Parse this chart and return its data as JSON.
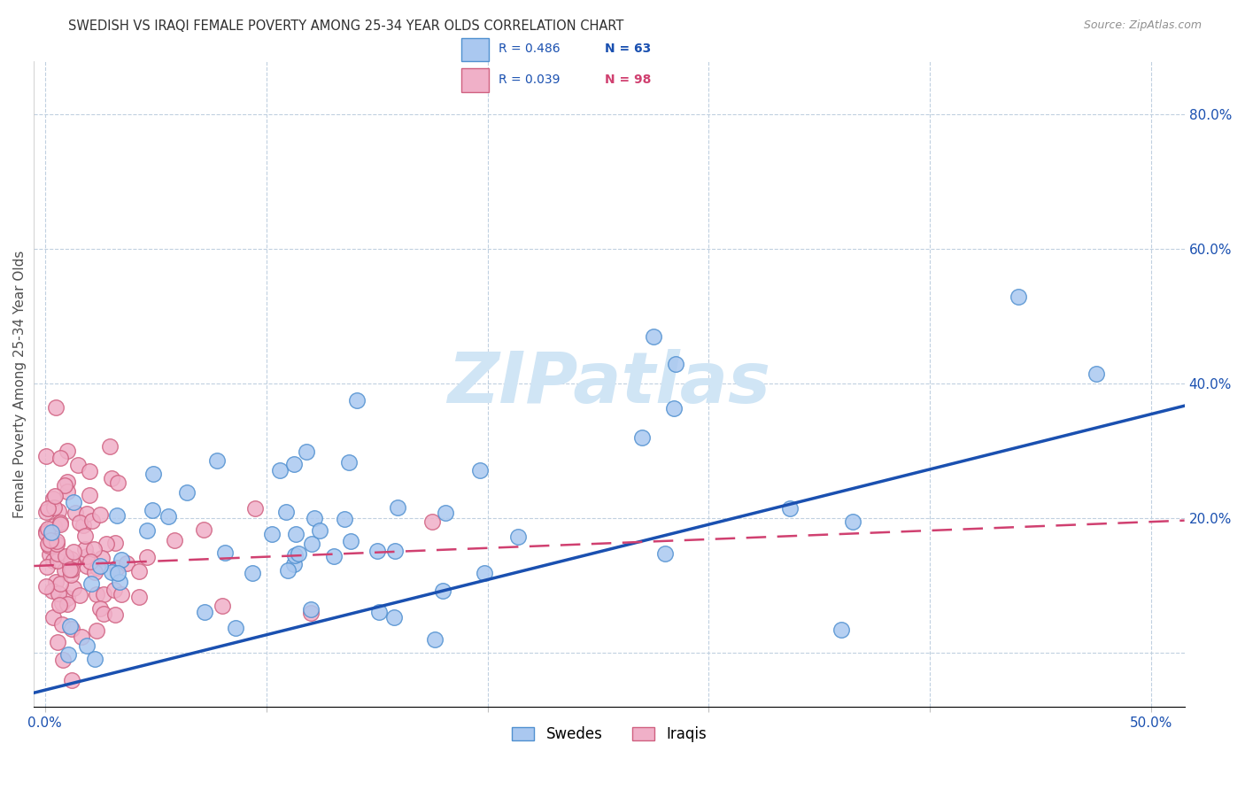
{
  "title": "SWEDISH VS IRAQI FEMALE POVERTY AMONG 25-34 YEAR OLDS CORRELATION CHART",
  "source": "Source: ZipAtlas.com",
  "ylabel": "Female Poverty Among 25-34 Year Olds",
  "xlim": [
    -0.005,
    0.515
  ],
  "ylim": [
    -0.08,
    0.88
  ],
  "swedes_color": "#aac8f0",
  "swedes_edge_color": "#5090d0",
  "iraqis_color": "#f0b0c8",
  "iraqis_edge_color": "#d06080",
  "blue_line_color": "#1a50b0",
  "pink_line_color": "#d04070",
  "legend_text_color": "#1a50b0",
  "legend_N_iraqis_color": "#d04070",
  "watermark_color": "#d0e5f5",
  "background_color": "#ffffff",
  "grid_color": "#c0d0e0",
  "title_color": "#303030",
  "source_color": "#909090",
  "ylabel_color": "#505050",
  "tick_color": "#1a50b0",
  "R_swedes": 0.486,
  "N_swedes": 63,
  "R_iraqis": 0.039,
  "N_iraqis": 98,
  "sw_seed": 12,
  "ir_seed": 7
}
